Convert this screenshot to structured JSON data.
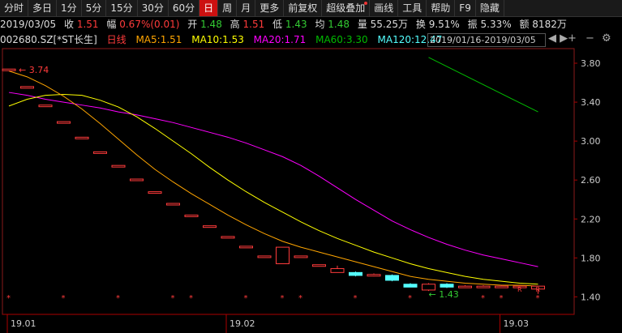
{
  "toolbar": {
    "items": [
      {
        "label": "分时",
        "active": false
      },
      {
        "label": "多日",
        "active": false
      },
      {
        "label": "1分",
        "active": false
      },
      {
        "label": "5分",
        "active": false
      },
      {
        "label": "15分",
        "active": false
      },
      {
        "label": "30分",
        "active": false
      },
      {
        "label": "60分",
        "active": false
      },
      {
        "label": "日",
        "active": true
      },
      {
        "label": "周",
        "active": false
      },
      {
        "label": "月",
        "active": false
      },
      {
        "label": "更多",
        "active": false
      },
      {
        "label": "前复权",
        "active": false
      },
      {
        "label": "超级叠加",
        "active": false,
        "dot": true
      },
      {
        "label": "画线",
        "active": false
      },
      {
        "label": "工具",
        "active": false
      },
      {
        "label": "帮助",
        "active": false
      },
      {
        "label": "F9",
        "active": false
      },
      {
        "label": "隐藏",
        "active": false
      }
    ]
  },
  "info": {
    "date": "2019/03/05",
    "close_label": "收",
    "close": "1.51",
    "chg_label": "幅",
    "chg": "0.67%(0.01)",
    "open_label": "开",
    "open": "1.48",
    "high_label": "高",
    "high": "1.51",
    "low_label": "低",
    "low": "1.43",
    "avg_label": "均",
    "avg": "1.48",
    "vol_label": "量",
    "vol": "55.25万",
    "turn_label": "换",
    "turn": "9.51%",
    "amp_label": "振",
    "amp": "5.33%",
    "amt_label": "额",
    "amt": "8182万"
  },
  "ma": {
    "code": "002680.SZ",
    "name": "[*ST长生]",
    "period": "日线",
    "ma5": "MA5:1.51",
    "ma10": "MA10:1.53",
    "ma20": "MA20:1.71",
    "ma60": "MA60:3.30",
    "ma120": "MA120:12.47",
    "range": "2019/01/16-2019/03/05",
    "arrows": "◀ ▶"
  },
  "colors": {
    "up": "#ff3b3b",
    "down": "#54ffff",
    "ma5": "#ffa500",
    "ma10": "#ffff00",
    "ma20": "#ff00ff",
    "ma60": "#00bb00",
    "ma120": "#54ffff"
  },
  "chart_data": {
    "type": "candlestick",
    "y_ticks": [
      "3.80",
      "3.40",
      "3.00",
      "2.60",
      "2.20",
      "1.80",
      "1.40"
    ],
    "ylim": [
      1.22,
      3.95
    ],
    "x_ticks": [
      {
        "label": "19.01",
        "i": 0
      },
      {
        "label": "19.02",
        "i": 12
      },
      {
        "label": "19.03",
        "i": 27
      }
    ],
    "high_marker": "3.74",
    "low_marker": "1.43",
    "candles": [
      {
        "o": 3.74,
        "c": 3.74,
        "h": 3.74,
        "l": 3.74
      },
      {
        "o": 3.56,
        "c": 3.56,
        "h": 3.56,
        "l": 3.56
      },
      {
        "o": 3.37,
        "c": 3.37,
        "h": 3.37,
        "l": 3.37
      },
      {
        "o": 3.2,
        "c": 3.2,
        "h": 3.2,
        "l": 3.2
      },
      {
        "o": 3.04,
        "c": 3.04,
        "h": 3.04,
        "l": 3.04
      },
      {
        "o": 2.89,
        "c": 2.89,
        "h": 2.89,
        "l": 2.89
      },
      {
        "o": 2.75,
        "c": 2.75,
        "h": 2.75,
        "l": 2.75
      },
      {
        "o": 2.61,
        "c": 2.61,
        "h": 2.61,
        "l": 2.61
      },
      {
        "o": 2.48,
        "c": 2.48,
        "h": 2.48,
        "l": 2.48
      },
      {
        "o": 2.36,
        "c": 2.36,
        "h": 2.36,
        "l": 2.36
      },
      {
        "o": 2.24,
        "c": 2.24,
        "h": 2.24,
        "l": 2.24
      },
      {
        "o": 2.13,
        "c": 2.13,
        "h": 2.13,
        "l": 2.13
      },
      {
        "o": 2.02,
        "c": 2.02,
        "h": 2.02,
        "l": 2.02
      },
      {
        "o": 1.92,
        "c": 1.92,
        "h": 1.92,
        "l": 1.92
      },
      {
        "o": 1.82,
        "c": 1.82,
        "h": 1.82,
        "l": 1.82
      },
      {
        "o": 1.74,
        "c": 1.91,
        "h": 1.91,
        "l": 1.74
      },
      {
        "o": 1.82,
        "c": 1.82,
        "h": 1.82,
        "l": 1.82
      },
      {
        "o": 1.73,
        "c": 1.73,
        "h": 1.73,
        "l": 1.73
      },
      {
        "o": 1.65,
        "c": 1.69,
        "h": 1.72,
        "l": 1.65
      },
      {
        "o": 1.65,
        "c": 1.62,
        "h": 1.66,
        "l": 1.61
      },
      {
        "o": 1.62,
        "c": 1.63,
        "h": 1.64,
        "l": 1.61
      },
      {
        "o": 1.62,
        "c": 1.57,
        "h": 1.63,
        "l": 1.56
      },
      {
        "o": 1.53,
        "c": 1.5,
        "h": 1.54,
        "l": 1.5
      },
      {
        "o": 1.47,
        "c": 1.53,
        "h": 1.54,
        "l": 1.46
      },
      {
        "o": 1.53,
        "c": 1.5,
        "h": 1.54,
        "l": 1.49
      },
      {
        "o": 1.5,
        "c": 1.51,
        "h": 1.52,
        "l": 1.49
      },
      {
        "o": 1.51,
        "c": 1.51,
        "h": 1.52,
        "l": 1.5
      },
      {
        "o": 1.51,
        "c": 1.51,
        "h": 1.52,
        "l": 1.5
      },
      {
        "o": 1.5,
        "c": 1.51,
        "h": 1.52,
        "l": 1.49
      },
      {
        "o": 1.48,
        "c": 1.51,
        "h": 1.51,
        "l": 1.43
      }
    ],
    "ma5": [
      3.72,
      3.66,
      3.57,
      3.46,
      3.33,
      3.18,
      3.02,
      2.86,
      2.71,
      2.58,
      2.46,
      2.35,
      2.24,
      2.14,
      2.05,
      1.97,
      1.91,
      1.86,
      1.81,
      1.76,
      1.71,
      1.66,
      1.61,
      1.58,
      1.56,
      1.54,
      1.53,
      1.52,
      1.52,
      1.51
    ],
    "ma10": [
      3.36,
      3.43,
      3.47,
      3.48,
      3.47,
      3.42,
      3.35,
      3.25,
      3.13,
      3.0,
      2.87,
      2.73,
      2.6,
      2.48,
      2.37,
      2.27,
      2.17,
      2.08,
      2.0,
      1.93,
      1.86,
      1.8,
      1.74,
      1.69,
      1.65,
      1.61,
      1.58,
      1.56,
      1.54,
      1.53
    ],
    "ma20": [
      3.5,
      3.47,
      3.43,
      3.4,
      3.37,
      3.34,
      3.3,
      3.27,
      3.23,
      3.19,
      3.14,
      3.09,
      3.04,
      2.98,
      2.91,
      2.84,
      2.75,
      2.64,
      2.52,
      2.4,
      2.29,
      2.18,
      2.09,
      2.01,
      1.94,
      1.88,
      1.83,
      1.79,
      1.75,
      1.71
    ],
    "ma60_segment": {
      "from": [
        3.86,
        3.3
      ],
      "i_from": 23,
      "i_to": 29
    }
  }
}
